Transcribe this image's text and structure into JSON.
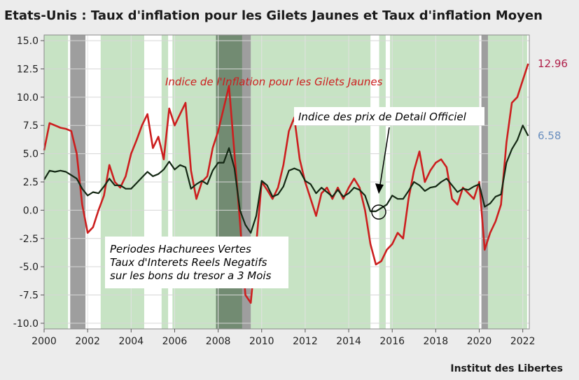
{
  "chart_data": {
    "type": "line",
    "title": "Etats-Unis : Taux d'inflation pour les Gilets Jaunes et Taux d'inflation Moyen",
    "source": "Institut des Libertes",
    "xlim": [
      2000,
      2022.3
    ],
    "ylim": [
      -10.5,
      15.5
    ],
    "x_ticks": [
      2000,
      2002,
      2004,
      2006,
      2008,
      2010,
      2012,
      2014,
      2016,
      2018,
      2020,
      2022
    ],
    "y_ticks": [
      -10.0,
      -7.5,
      -5.0,
      -2.5,
      0.0,
      2.5,
      5.0,
      7.5,
      10.0,
      12.5,
      15.0
    ],
    "grid": true,
    "shaded_periods_green": [
      [
        2000.0,
        2001.1
      ],
      [
        2002.6,
        2004.6
      ],
      [
        2005.4,
        2005.7
      ],
      [
        2005.9,
        2007.9
      ],
      [
        2009.5,
        2015.0
      ],
      [
        2015.4,
        2015.7
      ],
      [
        2015.9,
        2020.0
      ],
      [
        2020.4,
        2022.2
      ]
    ],
    "shaded_periods_recession": [
      [
        2001.2,
        2001.9
      ],
      [
        2007.9,
        2009.5
      ],
      [
        2020.1,
        2020.4
      ]
    ],
    "series": [
      {
        "name": "Indice de l'Inflation pour les Gilets Jaunes",
        "color": "#cc1f1f",
        "end_label": "12.96",
        "end_label_color": "#b0204a",
        "points": [
          [
            2000.0,
            5.3
          ],
          [
            2000.25,
            7.7
          ],
          [
            2000.5,
            7.5
          ],
          [
            2000.75,
            7.3
          ],
          [
            2001.0,
            7.2
          ],
          [
            2001.25,
            7.0
          ],
          [
            2001.5,
            5.0
          ],
          [
            2001.75,
            0.5
          ],
          [
            2002.0,
            -2.0
          ],
          [
            2002.25,
            -1.5
          ],
          [
            2002.5,
            0.0
          ],
          [
            2002.75,
            1.3
          ],
          [
            2003.0,
            4.0
          ],
          [
            2003.25,
            2.5
          ],
          [
            2003.5,
            2.0
          ],
          [
            2003.75,
            3.0
          ],
          [
            2004.0,
            5.0
          ],
          [
            2004.25,
            6.2
          ],
          [
            2004.5,
            7.5
          ],
          [
            2004.75,
            8.5
          ],
          [
            2005.0,
            5.5
          ],
          [
            2005.25,
            6.5
          ],
          [
            2005.5,
            4.5
          ],
          [
            2005.75,
            9.0
          ],
          [
            2006.0,
            7.5
          ],
          [
            2006.25,
            8.5
          ],
          [
            2006.5,
            9.5
          ],
          [
            2006.75,
            3.5
          ],
          [
            2007.0,
            1.0
          ],
          [
            2007.25,
            2.5
          ],
          [
            2007.5,
            3.0
          ],
          [
            2007.75,
            5.5
          ],
          [
            2008.0,
            7.0
          ],
          [
            2008.25,
            9.0
          ],
          [
            2008.5,
            11.0
          ],
          [
            2008.75,
            5.0
          ],
          [
            2009.0,
            -1.0
          ],
          [
            2009.25,
            -7.5
          ],
          [
            2009.5,
            -8.2
          ],
          [
            2009.75,
            -3.0
          ],
          [
            2010.0,
            2.5
          ],
          [
            2010.25,
            1.8
          ],
          [
            2010.5,
            1.0
          ],
          [
            2010.75,
            2.0
          ],
          [
            2011.0,
            4.0
          ],
          [
            2011.25,
            7.0
          ],
          [
            2011.5,
            8.2
          ],
          [
            2011.75,
            4.5
          ],
          [
            2012.0,
            2.5
          ],
          [
            2012.25,
            1.0
          ],
          [
            2012.5,
            -0.5
          ],
          [
            2012.75,
            1.5
          ],
          [
            2013.0,
            2.0
          ],
          [
            2013.25,
            1.0
          ],
          [
            2013.5,
            2.0
          ],
          [
            2013.75,
            1.0
          ],
          [
            2014.0,
            2.0
          ],
          [
            2014.25,
            2.8
          ],
          [
            2014.5,
            2.0
          ],
          [
            2014.75,
            0.0
          ],
          [
            2015.0,
            -3.0
          ],
          [
            2015.25,
            -4.8
          ],
          [
            2015.5,
            -4.5
          ],
          [
            2015.75,
            -3.5
          ],
          [
            2016.0,
            -3.0
          ],
          [
            2016.25,
            -2.0
          ],
          [
            2016.5,
            -2.5
          ],
          [
            2016.75,
            1.0
          ],
          [
            2017.0,
            3.5
          ],
          [
            2017.25,
            5.2
          ],
          [
            2017.5,
            2.5
          ],
          [
            2017.75,
            3.5
          ],
          [
            2018.0,
            4.2
          ],
          [
            2018.25,
            4.5
          ],
          [
            2018.5,
            3.8
          ],
          [
            2018.75,
            1.0
          ],
          [
            2019.0,
            0.5
          ],
          [
            2019.25,
            2.0
          ],
          [
            2019.5,
            1.5
          ],
          [
            2019.75,
            1.0
          ],
          [
            2020.0,
            2.5
          ],
          [
            2020.25,
            -3.5
          ],
          [
            2020.5,
            -2.0
          ],
          [
            2020.75,
            -1.0
          ],
          [
            2021.0,
            0.5
          ],
          [
            2021.25,
            6.0
          ],
          [
            2021.5,
            9.5
          ],
          [
            2021.75,
            10.0
          ],
          [
            2022.0,
            11.5
          ],
          [
            2022.25,
            12.96
          ]
        ]
      },
      {
        "name": "Indice des prix de Detail Officiel",
        "color": "#142814",
        "end_label": "6.58",
        "end_label_color": "#6a8fbf",
        "points": [
          [
            2000.0,
            2.7
          ],
          [
            2000.25,
            3.5
          ],
          [
            2000.5,
            3.4
          ],
          [
            2000.75,
            3.5
          ],
          [
            2001.0,
            3.4
          ],
          [
            2001.25,
            3.1
          ],
          [
            2001.5,
            2.8
          ],
          [
            2001.75,
            1.9
          ],
          [
            2002.0,
            1.3
          ],
          [
            2002.25,
            1.6
          ],
          [
            2002.5,
            1.5
          ],
          [
            2002.75,
            2.1
          ],
          [
            2003.0,
            2.8
          ],
          [
            2003.25,
            2.2
          ],
          [
            2003.5,
            2.2
          ],
          [
            2003.75,
            1.9
          ],
          [
            2004.0,
            1.9
          ],
          [
            2004.25,
            2.4
          ],
          [
            2004.5,
            2.9
          ],
          [
            2004.75,
            3.4
          ],
          [
            2005.0,
            3.0
          ],
          [
            2005.25,
            3.2
          ],
          [
            2005.5,
            3.6
          ],
          [
            2005.75,
            4.3
          ],
          [
            2006.0,
            3.6
          ],
          [
            2006.25,
            4.0
          ],
          [
            2006.5,
            3.8
          ],
          [
            2006.75,
            1.9
          ],
          [
            2007.0,
            2.3
          ],
          [
            2007.25,
            2.6
          ],
          [
            2007.5,
            2.3
          ],
          [
            2007.75,
            3.5
          ],
          [
            2008.0,
            4.2
          ],
          [
            2008.25,
            4.2
          ],
          [
            2008.5,
            5.5
          ],
          [
            2008.75,
            3.7
          ],
          [
            2009.0,
            0.0
          ],
          [
            2009.25,
            -1.3
          ],
          [
            2009.5,
            -2.0
          ],
          [
            2009.75,
            -0.5
          ],
          [
            2010.0,
            2.6
          ],
          [
            2010.25,
            2.2
          ],
          [
            2010.5,
            1.2
          ],
          [
            2010.75,
            1.4
          ],
          [
            2011.0,
            2.1
          ],
          [
            2011.25,
            3.5
          ],
          [
            2011.5,
            3.7
          ],
          [
            2011.75,
            3.5
          ],
          [
            2012.0,
            2.6
          ],
          [
            2012.25,
            2.3
          ],
          [
            2012.5,
            1.5
          ],
          [
            2012.75,
            2.0
          ],
          [
            2013.0,
            1.6
          ],
          [
            2013.25,
            1.2
          ],
          [
            2013.5,
            1.8
          ],
          [
            2013.75,
            1.2
          ],
          [
            2014.0,
            1.5
          ],
          [
            2014.25,
            2.0
          ],
          [
            2014.5,
            1.8
          ],
          [
            2014.75,
            1.3
          ],
          [
            2015.0,
            -0.1
          ],
          [
            2015.25,
            -0.1
          ],
          [
            2015.5,
            0.2
          ],
          [
            2015.75,
            0.5
          ],
          [
            2016.0,
            1.3
          ],
          [
            2016.25,
            1.0
          ],
          [
            2016.5,
            1.0
          ],
          [
            2016.75,
            1.7
          ],
          [
            2017.0,
            2.5
          ],
          [
            2017.25,
            2.2
          ],
          [
            2017.5,
            1.7
          ],
          [
            2017.75,
            2.0
          ],
          [
            2018.0,
            2.1
          ],
          [
            2018.25,
            2.5
          ],
          [
            2018.5,
            2.8
          ],
          [
            2018.75,
            2.2
          ],
          [
            2019.0,
            1.6
          ],
          [
            2019.25,
            1.9
          ],
          [
            2019.5,
            1.8
          ],
          [
            2019.75,
            2.1
          ],
          [
            2020.0,
            2.3
          ],
          [
            2020.25,
            0.3
          ],
          [
            2020.5,
            0.6
          ],
          [
            2020.75,
            1.2
          ],
          [
            2021.0,
            1.4
          ],
          [
            2021.25,
            4.2
          ],
          [
            2021.5,
            5.4
          ],
          [
            2021.75,
            6.2
          ],
          [
            2022.0,
            7.5
          ],
          [
            2022.25,
            6.58
          ]
        ]
      }
    ],
    "annotations": [
      {
        "text": "Indice de l'Inflation pour les Gilets Jaunes",
        "color": "#cc1f1f"
      },
      {
        "text": "Indice des prix de Detail Officiel",
        "color": "#000000"
      },
      {
        "lines": [
          "Periodes Hachurees Vertes",
          "Taux d'Interets Reels Negatifs",
          "sur les bons du tresor a 3 Mois"
        ],
        "color": "#000000"
      }
    ]
  }
}
